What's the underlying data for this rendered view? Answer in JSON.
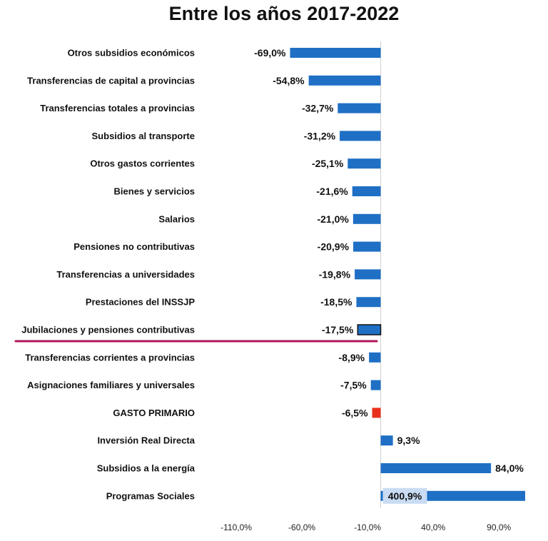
{
  "chart_data": {
    "type": "bar",
    "orientation": "horizontal",
    "title": "Entre los años 2017-2022",
    "categories": [
      "Otros subsidios económicos",
      "Transferencias de capital a provincias",
      "Transferencias totales a provincias",
      "Subsidios al transporte",
      "Otros gastos corrientes",
      "Bienes y servicios",
      "Salarios",
      "Pensiones no contributivas",
      "Transferencias a universidades",
      "Prestaciones del INSSJP",
      "Jubilaciones y pensiones contributivas",
      "Transferencias corrientes a provincias",
      "Asignaciones familiares y universales",
      "GASTO PRIMARIO",
      "Inversión Real Directa",
      "Subsidios a la energía",
      "Programas Sociales"
    ],
    "values": [
      -69.0,
      -54.8,
      -32.7,
      -31.2,
      -25.1,
      -21.6,
      -21.0,
      -20.9,
      -19.8,
      -18.5,
      -17.5,
      -8.9,
      -7.5,
      -6.5,
      9.3,
      84.0,
      400.9
    ],
    "data_labels": [
      "-69,0%",
      "-54,8%",
      "-32,7%",
      "-31,2%",
      "-25,1%",
      "-21,6%",
      "-21,0%",
      "-20,9%",
      "-19,8%",
      "-18,5%",
      "-17,5%",
      "-8,9%",
      "-7,5%",
      "-6,5%",
      "9,3%",
      "84,0%",
      "400,9%"
    ],
    "xlim": [
      -135,
      110
    ],
    "x_ticks": [
      -110,
      -60,
      -10,
      40,
      90
    ],
    "x_tick_labels": [
      "-110,0%",
      "-60,0%",
      "-10,0%",
      "40,0%",
      "90,0%"
    ],
    "bar_color": "#1f6fc5",
    "highlight_bar_color": "#e8301c",
    "highlight_index": 13,
    "emphasis_index": 10,
    "emphasis_line_color": "#b0145a",
    "truncated_index": 16,
    "grid": false
  }
}
